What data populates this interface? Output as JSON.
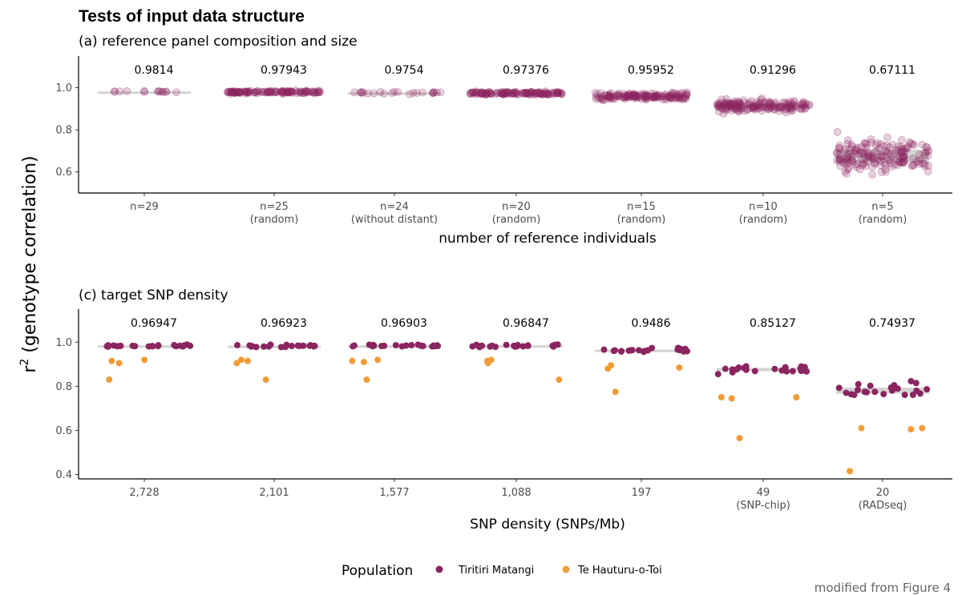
{
  "figure": {
    "title": "Tests of input data structure",
    "y_label": "r",
    "y_label_sup": "2",
    "y_label_rest": " (genotype correlation)",
    "caption": "modified from Figure 4"
  },
  "legend": {
    "title": "Population",
    "items": [
      {
        "name": "Tiritiri Matangi",
        "color": "#8B2560"
      },
      {
        "name": "Te Hauturu-o-Toi",
        "color": "#F29C38"
      }
    ]
  },
  "colors": {
    "tiritiri": "#8B2560",
    "hauturu": "#F29C38",
    "box": "#C8C8C8"
  },
  "chart_data": [
    {
      "type": "scatter",
      "subtitle": "(a) reference panel composition and size",
      "xlabel": "number of reference individuals",
      "ylim": [
        0.5,
        1.15
      ],
      "yticks": [
        0.6,
        0.8,
        1.0
      ],
      "ytick_labels": [
        "0.6",
        "0.8",
        "1.0"
      ],
      "categories": [
        {
          "label": "n=29",
          "sub": "",
          "mean": "0.9814",
          "center": 0.9814,
          "spread": 0.008,
          "n": 14
        },
        {
          "label": "n=25",
          "sub": "(random)",
          "mean": "0.97943",
          "center": 0.9794,
          "spread": 0.012,
          "n": 120
        },
        {
          "label": "n=24",
          "sub": "(without distant)",
          "mean": "0.9754",
          "center": 0.9754,
          "spread": 0.012,
          "n": 22
        },
        {
          "label": "n=20",
          "sub": "(random)",
          "mean": "0.97376",
          "center": 0.9738,
          "spread": 0.015,
          "n": 130
        },
        {
          "label": "n=15",
          "sub": "(random)",
          "mean": "0.95952",
          "center": 0.9595,
          "spread": 0.03,
          "n": 150
        },
        {
          "label": "n=10",
          "sub": "(random)",
          "mean": "0.91296",
          "center": 0.913,
          "spread": 0.06,
          "n": 160
        },
        {
          "label": "n=5",
          "sub": "(random)",
          "mean": "0.67111",
          "center": 0.6711,
          "spread": 0.15,
          "n": 170
        }
      ]
    },
    {
      "type": "scatter",
      "subtitle": "(c) target SNP density",
      "xlabel": "SNP density (SNPs/Mb)",
      "ylim": [
        0.38,
        1.15
      ],
      "yticks": [
        0.4,
        0.6,
        0.8,
        1.0
      ],
      "ytick_labels": [
        "0.4",
        "0.6",
        "0.8",
        "1.0"
      ],
      "categories": [
        {
          "label": "2,728",
          "sub": "",
          "mean": "0.96947",
          "center": 0.984,
          "spread": 0.01,
          "n": 22,
          "hauturu": [
            0.905,
            0.915,
            0.92,
            0.83
          ]
        },
        {
          "label": "2,101",
          "sub": "",
          "mean": "0.96923",
          "center": 0.984,
          "spread": 0.01,
          "n": 22,
          "hauturu": [
            0.915,
            0.905,
            0.83,
            0.92
          ]
        },
        {
          "label": "1,577",
          "sub": "",
          "mean": "0.96903",
          "center": 0.984,
          "spread": 0.01,
          "n": 22,
          "hauturu": [
            0.83,
            0.915,
            0.92,
            0.91
          ]
        },
        {
          "label": "1,088",
          "sub": "",
          "mean": "0.96847",
          "center": 0.984,
          "spread": 0.01,
          "n": 22,
          "hauturu": [
            0.915,
            0.83,
            0.92,
            0.905
          ]
        },
        {
          "label": "197",
          "sub": "",
          "mean": "0.9486",
          "center": 0.965,
          "spread": 0.015,
          "n": 22,
          "hauturu": [
            0.895,
            0.885,
            0.88,
            0.775
          ]
        },
        {
          "label": "49",
          "sub": "(SNP-chip)",
          "mean": "0.85127",
          "center": 0.875,
          "spread": 0.04,
          "n": 22,
          "hauturu": [
            0.745,
            0.75,
            0.75,
            0.565
          ]
        },
        {
          "label": "20",
          "sub": "(RADseq)",
          "mean": "0.74937",
          "center": 0.78,
          "spread": 0.07,
          "n": 22,
          "hauturu": [
            0.415,
            0.605,
            0.61,
            0.61
          ]
        }
      ]
    }
  ]
}
